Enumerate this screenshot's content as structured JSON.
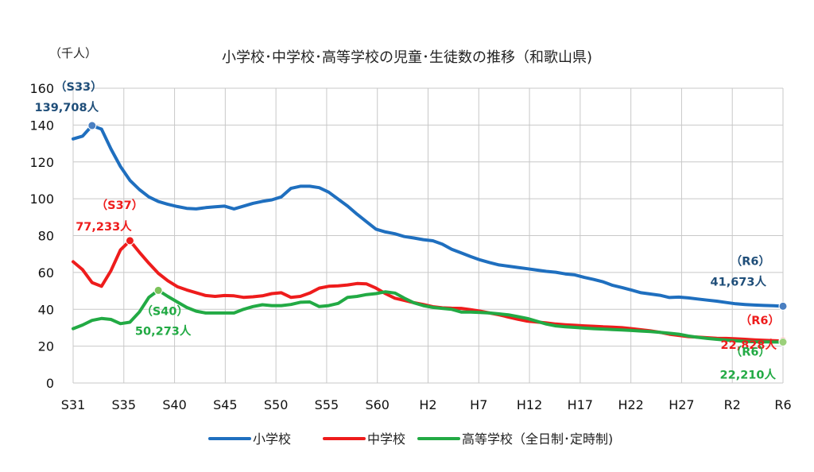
{
  "chart_data": {
    "type": "line",
    "title": "小学校･中学校･高等学校の児童･生徒数の推移（和歌山県)",
    "ylabel": "（千人）",
    "ylim": [
      0,
      160
    ],
    "yticks": [
      0,
      20,
      40,
      60,
      80,
      100,
      120,
      140,
      160
    ],
    "xlim": [
      31,
      106
    ],
    "xtick_labels": [
      "S31",
      "S35",
      "S40",
      "S45",
      "S50",
      "S55",
      "S60",
      "H2",
      "H7",
      "H12",
      "H17",
      "H22",
      "H27",
      "R2",
      "R6"
    ],
    "grid": true,
    "legend_position": "bottom",
    "series": [
      {
        "name": "小学校",
        "color": "#1f6fbf",
        "x": [
          31,
          32,
          33,
          34,
          35,
          36,
          37,
          38,
          39,
          40,
          41,
          42,
          43,
          44,
          45,
          46,
          47,
          48,
          49,
          50,
          51,
          52,
          53,
          54,
          55,
          56,
          57,
          58,
          59,
          60,
          61,
          62,
          63,
          64,
          65,
          66,
          67,
          68,
          69,
          70,
          71,
          72,
          73,
          74,
          75,
          76,
          77,
          78,
          79,
          80,
          81,
          82,
          83,
          84,
          85,
          86,
          87,
          88,
          89,
          90,
          91,
          92,
          93,
          94,
          95,
          96,
          97,
          98,
          99,
          100,
          101,
          102,
          103,
          104,
          105,
          106
        ],
        "values": [
          132.5,
          134,
          139.7,
          137.8,
          127,
          117.5,
          110,
          105,
          101,
          98.5,
          97,
          95.8,
          94.8,
          94.5,
          95.2,
          95.6,
          96,
          94.5,
          96,
          97.5,
          98.6,
          99.4,
          101,
          105.6,
          106.8,
          106.8,
          106,
          103.6,
          99.8,
          96,
          91.6,
          87.5,
          83.5,
          82,
          81,
          79.5,
          78.7,
          77.8,
          77.2,
          75.4,
          72.6,
          70.6,
          68.6,
          66.8,
          65.4,
          64.1,
          63.4,
          62.7,
          62,
          61.3,
          60.6,
          60.1,
          59.2,
          58.7,
          57.3,
          56.2,
          54.9,
          53,
          51.8,
          50.4,
          49,
          48.3,
          47.6,
          46.4,
          46.6,
          46.2,
          45.6,
          45,
          44.4,
          43.7,
          43,
          42.6,
          42.3,
          42.1,
          41.9,
          41.673
        ]
      },
      {
        "name": "中学校",
        "color": "#ee1c1c",
        "x": [
          31,
          32,
          33,
          34,
          35,
          36,
          37,
          38,
          39,
          40,
          41,
          42,
          43,
          44,
          45,
          46,
          47,
          48,
          49,
          50,
          51,
          52,
          53,
          54,
          55,
          56,
          57,
          58,
          59,
          60,
          61,
          62,
          63,
          64,
          65,
          66,
          67,
          68,
          69,
          70,
          71,
          72,
          73,
          74,
          75,
          76,
          77,
          78,
          79,
          80,
          81,
          82,
          83,
          84,
          85,
          86,
          87,
          88,
          89,
          90,
          91,
          92,
          93,
          94,
          95,
          96,
          97,
          98,
          99,
          100,
          101,
          102,
          103,
          104,
          105,
          106
        ],
        "values": [
          65.8,
          61.5,
          54.5,
          52.5,
          61,
          72.2,
          77.233,
          71,
          65,
          59.5,
          55.5,
          52.3,
          50.5,
          49,
          47.5,
          47,
          47.5,
          47.3,
          46.5,
          46.8,
          47.3,
          48.5,
          49,
          46.5,
          47,
          48.8,
          51.5,
          52.5,
          52.7,
          53.2,
          54,
          53.8,
          51.5,
          48.5,
          46,
          44.8,
          43.6,
          42.6,
          41.4,
          40.8,
          40.6,
          40.5,
          39.8,
          39,
          38,
          37,
          35.8,
          34.6,
          33.6,
          33.1,
          32.6,
          32,
          31.6,
          31.3,
          31,
          30.8,
          30.5,
          30.3,
          30,
          29.5,
          28.9,
          28.3,
          27.5,
          26.5,
          25.8,
          25.2,
          24.9,
          24.6,
          24.3,
          24.2,
          24,
          23.7,
          23.4,
          23.2,
          23,
          22.828
        ]
      },
      {
        "name": "高等学校（全日制･定時制)",
        "color": "#22aa44",
        "x": [
          31,
          32,
          33,
          34,
          35,
          36,
          37,
          38,
          39,
          40,
          41,
          42,
          43,
          44,
          45,
          46,
          47,
          48,
          49,
          50,
          51,
          52,
          53,
          54,
          55,
          56,
          57,
          58,
          59,
          60,
          61,
          62,
          63,
          64,
          65,
          66,
          67,
          68,
          69,
          70,
          71,
          72,
          73,
          74,
          75,
          76,
          77,
          78,
          79,
          80,
          81,
          82,
          83,
          84,
          85,
          86,
          87,
          88,
          89,
          90,
          91,
          92,
          93,
          94,
          95,
          96,
          97,
          98,
          99,
          100,
          101,
          102,
          103,
          104,
          105,
          106
        ],
        "values": [
          29.5,
          31.5,
          34,
          35,
          34.5,
          32.2,
          33,
          38.5,
          46.5,
          50.273,
          47,
          44,
          41,
          39,
          38,
          38,
          38,
          38,
          40,
          41.5,
          42.5,
          42,
          42,
          42.6,
          43.8,
          44,
          41.5,
          42,
          43.2,
          46.5,
          47,
          48,
          48.5,
          49.5,
          48.8,
          46,
          43.5,
          42,
          41,
          40.5,
          40,
          38.5,
          38.5,
          38.3,
          38,
          37.5,
          37,
          36,
          35,
          33.5,
          32,
          31,
          30.5,
          30.2,
          29.8,
          29.5,
          29.3,
          29,
          28.8,
          28.5,
          28.2,
          27.9,
          27.5,
          27,
          26.5,
          25.5,
          24.8,
          24.2,
          23.7,
          23.3,
          22.9,
          22.6,
          22.4,
          22.3,
          22.25,
          22.21
        ]
      }
    ],
    "annotations": [
      {
        "series": 0,
        "x": 33,
        "y": 139.708,
        "era": "（S33）",
        "value": "139,708人",
        "color": "#1f4e79"
      },
      {
        "series": 1,
        "x": 37,
        "y": 77.233,
        "era": "（S37）",
        "value": "77,233人",
        "color": "#ee1c1c"
      },
      {
        "series": 2,
        "x": 40,
        "y": 50.273,
        "era": "（S40）",
        "value": "50,273人",
        "color": "#22aa44"
      },
      {
        "series": 0,
        "x": 106,
        "y": 41.673,
        "era": "（R6）",
        "value": "41,673人",
        "color": "#1f4e79"
      },
      {
        "series": 1,
        "x": 106,
        "y": 22.828,
        "era": "（R6）",
        "value": "22,828人",
        "color": "#ee1c1c"
      },
      {
        "series": 2,
        "x": 106,
        "y": 22.21,
        "era": "（R6）",
        "value": "22,210人",
        "color": "#22aa44"
      }
    ]
  }
}
